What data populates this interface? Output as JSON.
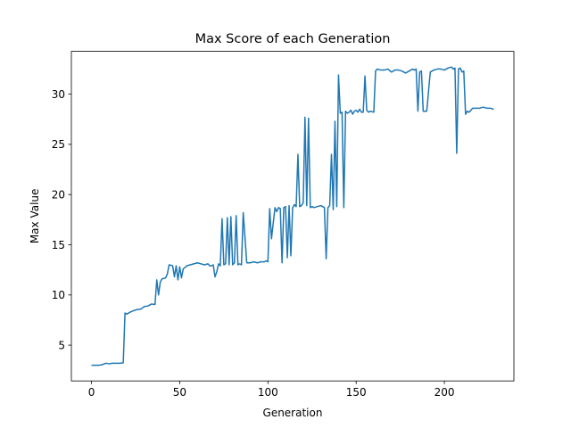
{
  "chart_data": {
    "type": "line",
    "title": "Max Score of each Generation",
    "xlabel": "Generation",
    "ylabel": "Max Value",
    "xlim": [
      -11.4,
      239.4
    ],
    "ylim": [
      1.44,
      34.26
    ],
    "xticks": [
      0,
      50,
      100,
      150,
      200
    ],
    "yticks": [
      5,
      10,
      15,
      20,
      25,
      30
    ],
    "grid": false,
    "legend": "none",
    "series": [
      {
        "color": "#1f77b4",
        "x": [
          0,
          2,
          4,
          6,
          8,
          10,
          12,
          14,
          16,
          18,
          19,
          20,
          22,
          24,
          26,
          28,
          30,
          32,
          34,
          36,
          37,
          38,
          39,
          40,
          42,
          43,
          44,
          46,
          47,
          48,
          49,
          50,
          51,
          52,
          54,
          56,
          58,
          60,
          62,
          64,
          66,
          67,
          68,
          69,
          70,
          71,
          72,
          73,
          74,
          75,
          76,
          77,
          78,
          79,
          80,
          81,
          82,
          83,
          84,
          85,
          86,
          88,
          90,
          92,
          94,
          96,
          98,
          99,
          100,
          101,
          102,
          104,
          105,
          106,
          107,
          108,
          109,
          110,
          111,
          112,
          113,
          114,
          115,
          116,
          117,
          118,
          119,
          120,
          121,
          122,
          123,
          124,
          125,
          126,
          128,
          130,
          132,
          133,
          134,
          135,
          136,
          137,
          138,
          139,
          140,
          141,
          142,
          143,
          144,
          145,
          146,
          147,
          148,
          149,
          150,
          151,
          152,
          153,
          154,
          155,
          156,
          157,
          158,
          160,
          161,
          162,
          164,
          166,
          168,
          170,
          172,
          174,
          176,
          178,
          180,
          182,
          183,
          184,
          185,
          186,
          187,
          188,
          190,
          192,
          194,
          196,
          198,
          200,
          202,
          204,
          205,
          206,
          207,
          208,
          209,
          210,
          211,
          212,
          213,
          214,
          216,
          218,
          220,
          222,
          224,
          226,
          228
        ],
        "y": [
          3.0,
          3.0,
          3.0,
          3.05,
          3.2,
          3.15,
          3.2,
          3.2,
          3.2,
          3.25,
          8.2,
          8.1,
          8.3,
          8.45,
          8.55,
          8.6,
          8.85,
          8.9,
          9.1,
          9.05,
          11.5,
          10.0,
          11.3,
          11.6,
          11.7,
          12.1,
          13.0,
          12.9,
          11.8,
          12.9,
          11.5,
          12.8,
          11.7,
          12.6,
          12.9,
          13.0,
          13.1,
          13.2,
          13.1,
          13.0,
          13.1,
          12.9,
          12.9,
          13.0,
          11.8,
          12.3,
          13.1,
          12.9,
          17.6,
          13.0,
          13.1,
          17.7,
          13.0,
          17.8,
          13.0,
          13.2,
          17.9,
          13.0,
          13.1,
          13.0,
          18.2,
          13.2,
          13.2,
          13.3,
          13.2,
          13.3,
          13.3,
          13.4,
          13.3,
          18.6,
          15.6,
          18.7,
          18.3,
          18.7,
          18.6,
          13.2,
          18.7,
          18.8,
          13.7,
          18.9,
          13.9,
          18.7,
          19.0,
          18.8,
          24.0,
          18.8,
          18.9,
          19.2,
          27.7,
          18.9,
          27.6,
          18.7,
          18.8,
          18.7,
          18.8,
          18.9,
          18.7,
          13.6,
          18.7,
          18.9,
          24.0,
          18.5,
          27.3,
          18.8,
          31.9,
          28.1,
          28.2,
          18.7,
          28.3,
          28.1,
          28.2,
          28.4,
          28.0,
          28.3,
          28.4,
          28.2,
          28.5,
          28.2,
          28.2,
          31.8,
          28.4,
          28.2,
          28.3,
          28.2,
          32.3,
          32.5,
          32.4,
          32.4,
          32.5,
          32.2,
          32.4,
          32.4,
          32.3,
          32.1,
          32.3,
          32.5,
          32.4,
          32.5,
          28.3,
          32.2,
          32.3,
          28.3,
          28.3,
          32.2,
          32.4,
          32.5,
          32.5,
          32.4,
          32.6,
          32.7,
          32.5,
          32.6,
          24.1,
          32.5,
          32.6,
          32.2,
          32.3,
          28.0,
          28.3,
          28.2,
          28.6,
          28.6,
          28.6,
          28.7,
          28.6,
          28.6,
          28.5
        ]
      }
    ]
  }
}
